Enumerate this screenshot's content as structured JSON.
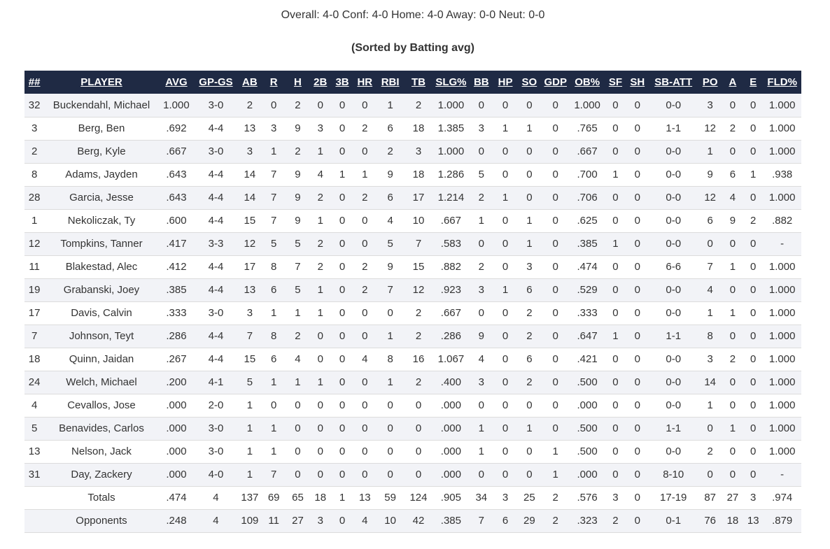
{
  "summary": "Overall: 4-0 Conf: 4-0 Home: 4-0 Away: 0-0 Neut: 0-0",
  "sorted_label": "(Sorted by Batting avg)",
  "columns": [
    "##",
    "PLAYER",
    "AVG",
    "GP-GS",
    "AB",
    "R",
    "H",
    "2B",
    "3B",
    "HR",
    "RBI",
    "TB",
    "SLG%",
    "BB",
    "HP",
    "SO",
    "GDP",
    "OB%",
    "SF",
    "SH",
    "SB-ATT",
    "PO",
    "A",
    "E",
    "FLD%"
  ],
  "rows": [
    [
      "32",
      "Buckendahl, Michael",
      "1.000",
      "3-0",
      "2",
      "0",
      "2",
      "0",
      "0",
      "0",
      "1",
      "2",
      "1.000",
      "0",
      "0",
      "0",
      "0",
      "1.000",
      "0",
      "0",
      "0-0",
      "3",
      "0",
      "0",
      "1.000"
    ],
    [
      "3",
      "Berg, Ben",
      ".692",
      "4-4",
      "13",
      "3",
      "9",
      "3",
      "0",
      "2",
      "6",
      "18",
      "1.385",
      "3",
      "1",
      "1",
      "0",
      ".765",
      "0",
      "0",
      "1-1",
      "12",
      "2",
      "0",
      "1.000"
    ],
    [
      "2",
      "Berg, Kyle",
      ".667",
      "3-0",
      "3",
      "1",
      "2",
      "1",
      "0",
      "0",
      "2",
      "3",
      "1.000",
      "0",
      "0",
      "0",
      "0",
      ".667",
      "0",
      "0",
      "0-0",
      "1",
      "0",
      "0",
      "1.000"
    ],
    [
      "8",
      "Adams, Jayden",
      ".643",
      "4-4",
      "14",
      "7",
      "9",
      "4",
      "1",
      "1",
      "9",
      "18",
      "1.286",
      "5",
      "0",
      "0",
      "0",
      ".700",
      "1",
      "0",
      "0-0",
      "9",
      "6",
      "1",
      ".938"
    ],
    [
      "28",
      "Garcia, Jesse",
      ".643",
      "4-4",
      "14",
      "7",
      "9",
      "2",
      "0",
      "2",
      "6",
      "17",
      "1.214",
      "2",
      "1",
      "0",
      "0",
      ".706",
      "0",
      "0",
      "0-0",
      "12",
      "4",
      "0",
      "1.000"
    ],
    [
      "1",
      "Nekoliczak, Ty",
      ".600",
      "4-4",
      "15",
      "7",
      "9",
      "1",
      "0",
      "0",
      "4",
      "10",
      ".667",
      "1",
      "0",
      "1",
      "0",
      ".625",
      "0",
      "0",
      "0-0",
      "6",
      "9",
      "2",
      ".882"
    ],
    [
      "12",
      "Tompkins, Tanner",
      ".417",
      "3-3",
      "12",
      "5",
      "5",
      "2",
      "0",
      "0",
      "5",
      "7",
      ".583",
      "0",
      "0",
      "1",
      "0",
      ".385",
      "1",
      "0",
      "0-0",
      "0",
      "0",
      "0",
      "-"
    ],
    [
      "11",
      "Blakestad, Alec",
      ".412",
      "4-4",
      "17",
      "8",
      "7",
      "2",
      "0",
      "2",
      "9",
      "15",
      ".882",
      "2",
      "0",
      "3",
      "0",
      ".474",
      "0",
      "0",
      "6-6",
      "7",
      "1",
      "0",
      "1.000"
    ],
    [
      "19",
      "Grabanski, Joey",
      ".385",
      "4-4",
      "13",
      "6",
      "5",
      "1",
      "0",
      "2",
      "7",
      "12",
      ".923",
      "3",
      "1",
      "6",
      "0",
      ".529",
      "0",
      "0",
      "0-0",
      "4",
      "0",
      "0",
      "1.000"
    ],
    [
      "17",
      "Davis, Calvin",
      ".333",
      "3-0",
      "3",
      "1",
      "1",
      "1",
      "0",
      "0",
      "0",
      "2",
      ".667",
      "0",
      "0",
      "2",
      "0",
      ".333",
      "0",
      "0",
      "0-0",
      "1",
      "1",
      "0",
      "1.000"
    ],
    [
      "7",
      "Johnson, Teyt",
      ".286",
      "4-4",
      "7",
      "8",
      "2",
      "0",
      "0",
      "0",
      "1",
      "2",
      ".286",
      "9",
      "0",
      "2",
      "0",
      ".647",
      "1",
      "0",
      "1-1",
      "8",
      "0",
      "0",
      "1.000"
    ],
    [
      "18",
      "Quinn, Jaidan",
      ".267",
      "4-4",
      "15",
      "6",
      "4",
      "0",
      "0",
      "4",
      "8",
      "16",
      "1.067",
      "4",
      "0",
      "6",
      "0",
      ".421",
      "0",
      "0",
      "0-0",
      "3",
      "2",
      "0",
      "1.000"
    ],
    [
      "24",
      "Welch, Michael",
      ".200",
      "4-1",
      "5",
      "1",
      "1",
      "1",
      "0",
      "0",
      "1",
      "2",
      ".400",
      "3",
      "0",
      "2",
      "0",
      ".500",
      "0",
      "0",
      "0-0",
      "14",
      "0",
      "0",
      "1.000"
    ],
    [
      "4",
      "Cevallos, Jose",
      ".000",
      "2-0",
      "1",
      "0",
      "0",
      "0",
      "0",
      "0",
      "0",
      "0",
      ".000",
      "0",
      "0",
      "0",
      "0",
      ".000",
      "0",
      "0",
      "0-0",
      "1",
      "0",
      "0",
      "1.000"
    ],
    [
      "5",
      "Benavides, Carlos",
      ".000",
      "3-0",
      "1",
      "1",
      "0",
      "0",
      "0",
      "0",
      "0",
      "0",
      ".000",
      "1",
      "0",
      "1",
      "0",
      ".500",
      "0",
      "0",
      "1-1",
      "0",
      "1",
      "0",
      "1.000"
    ],
    [
      "13",
      "Nelson, Jack",
      ".000",
      "3-0",
      "1",
      "1",
      "0",
      "0",
      "0",
      "0",
      "0",
      "0",
      ".000",
      "1",
      "0",
      "0",
      "1",
      ".500",
      "0",
      "0",
      "0-0",
      "2",
      "0",
      "0",
      "1.000"
    ],
    [
      "31",
      "Day, Zackery",
      ".000",
      "4-0",
      "1",
      "7",
      "0",
      "0",
      "0",
      "0",
      "0",
      "0",
      ".000",
      "0",
      "0",
      "0",
      "1",
      ".000",
      "0",
      "0",
      "8-10",
      "0",
      "0",
      "0",
      "-"
    ],
    [
      "",
      "Totals",
      ".474",
      "4",
      "137",
      "69",
      "65",
      "18",
      "1",
      "13",
      "59",
      "124",
      ".905",
      "34",
      "3",
      "25",
      "2",
      ".576",
      "3",
      "0",
      "17-19",
      "87",
      "27",
      "3",
      ".974"
    ],
    [
      "",
      "Opponents",
      ".248",
      "4",
      "109",
      "11",
      "27",
      "3",
      "0",
      "4",
      "10",
      "42",
      ".385",
      "7",
      "6",
      "29",
      "2",
      ".323",
      "2",
      "0",
      "0-1",
      "76",
      "18",
      "13",
      ".879"
    ]
  ],
  "colors": {
    "header_bg": "#1f2a44",
    "header_text": "#ffffff",
    "stripe": "#f2f3f7"
  }
}
